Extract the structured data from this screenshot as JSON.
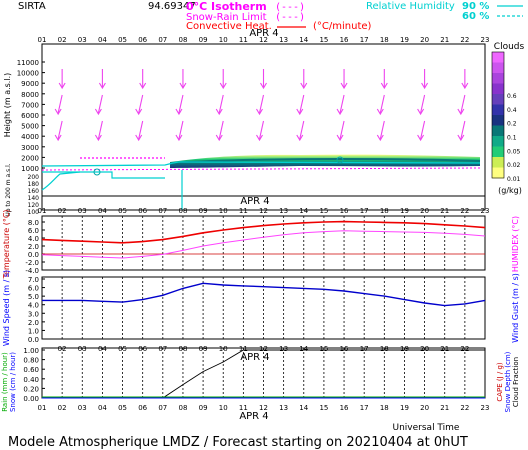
{
  "header": {
    "station": "SIRTA",
    "coords": "94.69347",
    "legend_zero_isotherm": "0°C Isotherm",
    "legend_snow_rain": "Snow-Rain Limit",
    "legend_convective": "Convective Heat.",
    "legend_convective_unit": "(°C/minute)",
    "legend_rh": "Relative Humidity",
    "rh_90": "90 %",
    "rh_60": "60 %",
    "legend_sample": "(---)"
  },
  "footer": {
    "universal_time": "Universal Time",
    "model": "Modele Atmospherique LMDZ / Forecast starting on 20210404 at 0hUT"
  },
  "colors": {
    "magenta": "#ff00ff",
    "red": "#ff0000",
    "cyan": "#00e0e0",
    "blue": "#0000ff",
    "green": "#00bb00",
    "dark_red": "#cc0000"
  },
  "chart_data": [
    {
      "panel": "clouds",
      "type": "heatmap",
      "hour_ticks": [
        "01",
        "02",
        "03",
        "04",
        "05",
        "06",
        "07",
        "08",
        "09",
        "10",
        "11",
        "12",
        "13",
        "14",
        "15",
        "16",
        "17",
        "18",
        "19",
        "20",
        "21",
        "22",
        "23"
      ],
      "date_label": "APR   4",
      "ylabel": "Height (m a.s.l.)",
      "ylabel_lower": "Up to 200 m a.s.l.",
      "y_ticks_upper": [
        "11000",
        "10000",
        "9000",
        "8000",
        "7000",
        "6000",
        "5000",
        "4000",
        "3000",
        "2000",
        "1000"
      ],
      "y_ticks_lower": [
        "200",
        "180",
        "160",
        "140",
        "120",
        "100"
      ],
      "colorbar_title": "Clouds",
      "colorbar_ticks": [
        "0.6",
        "0.4",
        "0.2",
        "0.1",
        "0.05",
        "0.02",
        "0.01"
      ],
      "colorbar_unit": "(g/kg)",
      "colorbar_colors": [
        "#ffff80",
        "#ccee55",
        "#22cc77",
        "#11aa88",
        "#0a7777",
        "#1a3380",
        "#3333aa",
        "#6640bb",
        "#8833cc",
        "#aa44dd",
        "#cc55ee",
        "#ee66ff"
      ],
      "wind_arrows": "pointing down / south-south-west"
    },
    {
      "panel": "temperature",
      "type": "line",
      "ylabel_left": "Temperature (°C)",
      "ylabel_right": "HUMIDEX (°C)",
      "y_ticks": [
        "8.0",
        "6.0",
        "4.0",
        "2.0",
        "0.0",
        "-2.0",
        "-4.0"
      ],
      "ylim": [
        -4,
        8
      ],
      "x": [
        1,
        2,
        3,
        4,
        5,
        6,
        7,
        8,
        9,
        10,
        11,
        12,
        13,
        14,
        15,
        16,
        17,
        18,
        19,
        20,
        21,
        22,
        23
      ],
      "series": [
        {
          "name": "Temperature",
          "values": [
            3.6,
            3.4,
            3.2,
            3.0,
            2.8,
            3.1,
            3.6,
            4.4,
            5.3,
            6.0,
            6.6,
            7.1,
            7.5,
            7.8,
            8.0,
            8.1,
            8.0,
            7.9,
            7.8,
            7.6,
            7.3,
            7.0,
            6.6
          ]
        },
        {
          "name": "HUMIDEX",
          "values": [
            -0.2,
            -0.4,
            -0.6,
            -0.8,
            -1.0,
            -0.6,
            -0.1,
            0.9,
            2.0,
            2.8,
            3.5,
            4.2,
            4.8,
            5.3,
            5.6,
            5.8,
            5.7,
            5.6,
            5.5,
            5.4,
            5.2,
            4.9,
            4.5
          ]
        }
      ]
    },
    {
      "panel": "wind",
      "type": "line",
      "ylabel_left": "Wind Speed (m / s)",
      "ylabel_right": "Wind Gust (m / s)",
      "y_ticks": [
        "7.0",
        "6.0",
        "5.0",
        "4.0",
        "3.0",
        "2.0",
        "1.0",
        "0.0"
      ],
      "ylim": [
        0,
        7
      ],
      "x": [
        1,
        2,
        3,
        4,
        5,
        6,
        7,
        8,
        9,
        10,
        11,
        12,
        13,
        14,
        15,
        16,
        17,
        18,
        19,
        20,
        21,
        22,
        23
      ],
      "series": [
        {
          "name": "Wind Speed",
          "values": [
            4.5,
            4.5,
            4.5,
            4.4,
            4.3,
            4.6,
            5.1,
            5.9,
            6.5,
            6.3,
            6.2,
            6.1,
            6.0,
            5.9,
            5.8,
            5.6,
            5.3,
            5.0,
            4.6,
            4.2,
            3.9,
            4.1,
            4.5
          ]
        }
      ]
    },
    {
      "panel": "precipitation",
      "type": "line",
      "ylabel_left": "Rain (mm / hour)",
      "ylabel_left2": "Snow (cm / hour)",
      "ylabel_right": "CAPE (J / g)",
      "ylabel_right2": "Snow Depth (cm)",
      "ylabel_right3": "Cloud Fraction",
      "y_ticks": [
        "1.00",
        "0.80",
        "0.60",
        "0.40",
        "0.20",
        "0.00"
      ],
      "ylim": [
        0,
        1
      ],
      "x": [
        1,
        2,
        3,
        4,
        5,
        6,
        7,
        8,
        9,
        10,
        11,
        12,
        13,
        14,
        15,
        16,
        17,
        18,
        19,
        20,
        21,
        22,
        23
      ],
      "series": [
        {
          "name": "Cloud Fraction",
          "values": [
            0,
            0,
            0,
            0,
            0,
            0,
            0,
            0.28,
            0.55,
            0.75,
            1,
            1,
            1,
            1,
            1,
            1,
            1,
            1,
            1,
            1,
            1,
            1,
            1
          ]
        }
      ]
    }
  ]
}
